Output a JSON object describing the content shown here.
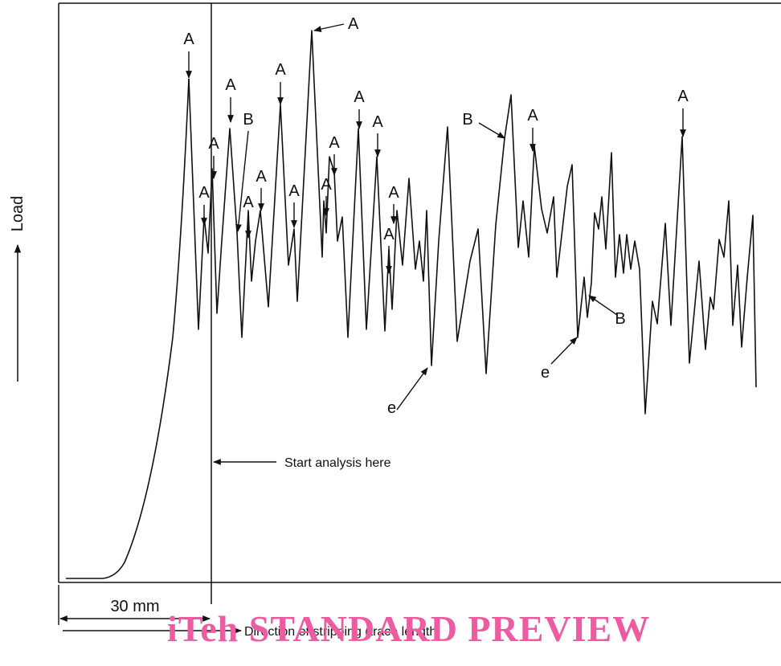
{
  "figure": {
    "y_axis_label": "Load",
    "width_label": "30 mm",
    "start_label": "Start analysis here",
    "direction_label": "Direction of stripping (trace length)",
    "peak_marker_label": "A",
    "shoulder_marker_label": "B",
    "end_marker_label": "e"
  },
  "watermark": {
    "text": "iTeh STANDARD PREVIEW",
    "color": "#ee5ba0"
  }
}
